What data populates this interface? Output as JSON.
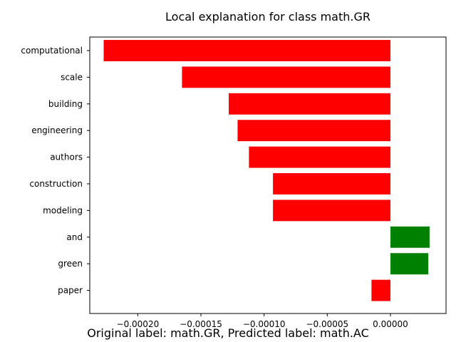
{
  "chart_data": {
    "type": "bar",
    "orientation": "horizontal",
    "title": "Local explanation for class math.GR",
    "xlabel": "",
    "ylabel": "",
    "categories": [
      "computational",
      "scale",
      "building",
      "engineering",
      "authors",
      "construction",
      "modeling",
      "and",
      "green",
      "paper"
    ],
    "values": [
      -0.000227,
      -0.000165,
      -0.000128,
      -0.000121,
      -0.000112,
      -9.3e-05,
      -9.3e-05,
      3.1e-05,
      3e-05,
      -1.5e-05
    ],
    "xlim": [
      -0.000238,
      4.4e-05
    ],
    "xticks": [
      -0.0002,
      -0.00015,
      -0.0001,
      -5e-05,
      0.0
    ],
    "xtick_labels": [
      "−0.00020",
      "−0.00015",
      "−0.00010",
      "−0.00005",
      "0.00000"
    ],
    "grid": false,
    "colors": {
      "negative": "#ff0000",
      "positive": "#008000"
    }
  },
  "caption": "Original label: math.GR, Predicted label: math.AC"
}
